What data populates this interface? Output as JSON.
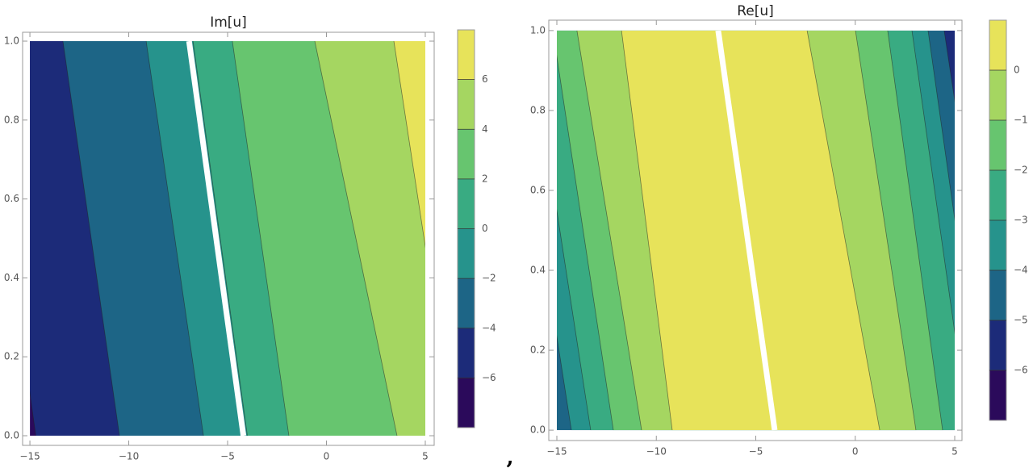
{
  "chart_data": [
    {
      "type": "contour",
      "title": "Im[u]",
      "xlim": [
        -15.37,
        5.45
      ],
      "ylim": [
        -0.0245,
        1.0225
      ],
      "data_xlim": [
        -15,
        5
      ],
      "data_ylim": [
        0,
        1
      ],
      "xticks": [
        {
          "value": -15,
          "label": "−15"
        },
        {
          "value": -10,
          "label": "−10"
        },
        {
          "value": -5,
          "label": "−5"
        },
        0,
        5
      ],
      "yticks": [
        {
          "value": 0,
          "label": "0.0"
        },
        0.2,
        0.4,
        0.6,
        0.8,
        {
          "value": 1,
          "label": "1.0"
        }
      ],
      "clim": [
        -8,
        8
      ],
      "cticks": [
        {
          "value": -6,
          "label": "−6"
        },
        {
          "value": -4,
          "label": "−4"
        },
        {
          "value": -2,
          "label": "−2"
        },
        0,
        2,
        4,
        6
      ],
      "colors": [
        "#2b0a5b",
        "#1c2b79",
        "#1d6586",
        "#26938c",
        "#39ab82",
        "#67c56f",
        "#a5d661",
        "#e7e35a"
      ],
      "contours": [
        {
          "level": -6,
          "x": [
            -14.7,
            -17.5
          ],
          "above": "right"
        },
        {
          "level": -4,
          "x": [
            -10.47,
            -13.33
          ],
          "above": "right"
        },
        {
          "level": -2,
          "x": [
            -6.22,
            -9.12
          ],
          "above": "right"
        },
        {
          "level": 0,
          "x": [
            -4.0,
            -6.75
          ],
          "above": "right"
        },
        {
          "level": 2,
          "x": [
            -1.9,
            -4.76
          ],
          "above": "right"
        },
        {
          "level": 4,
          "x": [
            3.57,
            -0.59
          ],
          "above": "right"
        },
        {
          "level": 6,
          "x": [
            6.47,
            3.41
          ],
          "above": "right"
        }
      ],
      "cut": {
        "x": [
          -4.2,
          -6.95
        ],
        "color": "#ffffff"
      }
    },
    {
      "type": "contour",
      "title": "Re[u]",
      "xlim": [
        -15.406,
        5.365
      ],
      "ylim": [
        -0.026,
        1.026
      ],
      "data_xlim": [
        -15,
        5
      ],
      "data_ylim": [
        0,
        1
      ],
      "xticks": [
        {
          "value": -15,
          "label": "−15"
        },
        {
          "value": -10,
          "label": "−10"
        },
        {
          "value": -5,
          "label": "−5"
        },
        0,
        5
      ],
      "yticks": [
        {
          "value": 0,
          "label": "0.0"
        },
        0.2,
        0.4,
        0.6,
        0.8,
        {
          "value": 1,
          "label": "1.0"
        }
      ],
      "clim": [
        -7,
        1
      ],
      "cticks": [
        {
          "value": -6,
          "label": "−6"
        },
        {
          "value": -5,
          "label": "−5"
        },
        {
          "value": -4,
          "label": "−4"
        },
        {
          "value": -3,
          "label": "−3"
        },
        {
          "value": -2,
          "label": "−2"
        },
        {
          "value": -1,
          "label": "−1"
        },
        0
      ],
      "colors": [
        "#2b0a5b",
        "#1c2b79",
        "#1d6586",
        "#26938c",
        "#39ab82",
        "#67c56f",
        "#a5d661",
        "#e7e35a"
      ],
      "contours": [
        {
          "level": -4,
          "x": [
            -14.27,
            -17.4
          ],
          "above": "right"
        },
        {
          "level": -3,
          "x": [
            -13.3,
            -16.4
          ],
          "above": "right"
        },
        {
          "level": -2,
          "x": [
            -12.16,
            -15.2
          ],
          "above": "right"
        },
        {
          "level": -1,
          "x": [
            -10.74,
            -13.99
          ],
          "above": "right"
        },
        {
          "level": 0,
          "x": [
            -9.2,
            -11.75
          ],
          "above": "right"
        },
        {
          "level": 0,
          "x": [
            1.23,
            -2.42
          ],
          "above": "left"
        },
        {
          "level": -1,
          "x": [
            3.05,
            0.01
          ],
          "above": "left"
        },
        {
          "level": -2,
          "x": [
            4.39,
            1.63
          ],
          "above": "left"
        },
        {
          "level": -3,
          "x": [
            5.7,
            2.85
          ],
          "above": "left"
        },
        {
          "level": -4,
          "x": [
            6.5,
            3.66
          ],
          "above": "left"
        },
        {
          "level": -5,
          "x": [
            7.5,
            4.47
          ],
          "above": "left"
        }
      ],
      "cut": {
        "x": [
          -4.05,
          -6.89
        ],
        "color": "#ffffff"
      }
    }
  ],
  "separator": ","
}
